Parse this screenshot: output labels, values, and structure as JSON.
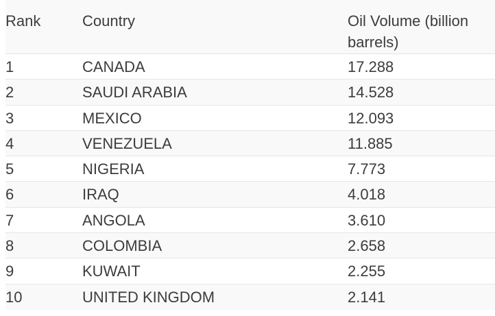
{
  "table": {
    "headers": {
      "rank": "Rank",
      "country": "Country",
      "volume": "Oil Volume (billion barrels)"
    },
    "rows": [
      {
        "rank": "1",
        "country": "CANADA",
        "volume": "17.288"
      },
      {
        "rank": "2",
        "country": "SAUDI ARABIA",
        "volume": "14.528"
      },
      {
        "rank": "3",
        "country": "MEXICO",
        "volume": "12.093"
      },
      {
        "rank": "4",
        "country": "VENEZUELA",
        "volume": "11.885"
      },
      {
        "rank": "5",
        "country": "NIGERIA",
        "volume": "7.773"
      },
      {
        "rank": "6",
        "country": "IRAQ",
        "volume": "4.018"
      },
      {
        "rank": "7",
        "country": "ANGOLA",
        "volume": "3.610"
      },
      {
        "rank": "8",
        "country": "COLOMBIA",
        "volume": "2.658"
      },
      {
        "rank": "9",
        "country": "KUWAIT",
        "volume": "2.255"
      },
      {
        "rank": "10",
        "country": "UNITED KINGDOM",
        "volume": "2.141"
      }
    ]
  }
}
